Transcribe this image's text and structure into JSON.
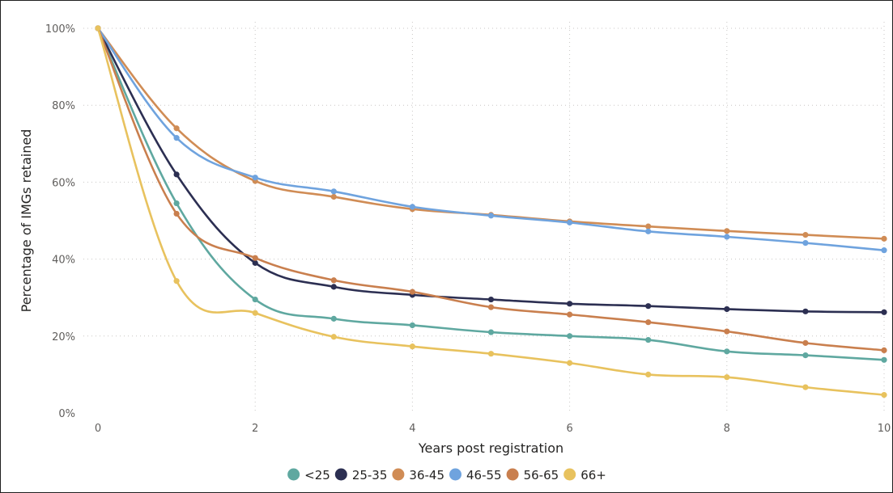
{
  "chart_data": {
    "type": "line",
    "title": "",
    "xlabel": "Years post registration",
    "ylabel": "Percentage of IMGs retained",
    "x": [
      0,
      1,
      2,
      3,
      4,
      5,
      6,
      7,
      8,
      9,
      10
    ],
    "xlim": [
      0,
      10
    ],
    "ylim": [
      0,
      100
    ],
    "x_ticks": [
      0,
      2,
      4,
      6,
      8,
      10
    ],
    "x_tick_labels": [
      "0",
      "2",
      "4",
      "6",
      "8",
      "10"
    ],
    "y_ticks": [
      0,
      20,
      40,
      60,
      80,
      100
    ],
    "y_tick_labels": [
      "0%",
      "20%",
      "40%",
      "60%",
      "80%",
      "100%"
    ],
    "grid": true,
    "legend_position": "bottom",
    "series": [
      {
        "name": "<25",
        "color": "#5fa8a0",
        "values": [
          100,
          54.5,
          29.5,
          24.5,
          22.8,
          21.0,
          20.0,
          19.0,
          16.0,
          15.0,
          13.8
        ]
      },
      {
        "name": "25-35",
        "color": "#2c2f52",
        "values": [
          100,
          62.0,
          39.0,
          32.8,
          30.7,
          29.5,
          28.4,
          27.8,
          27.0,
          26.4,
          26.2
        ]
      },
      {
        "name": "36-45",
        "color": "#d08c55",
        "values": [
          100,
          74.0,
          60.3,
          56.2,
          53.0,
          51.5,
          49.8,
          48.5,
          47.3,
          46.3,
          45.3
        ]
      },
      {
        "name": "46-55",
        "color": "#6fa3de",
        "values": [
          100,
          71.5,
          61.2,
          57.6,
          53.6,
          51.3,
          49.5,
          47.2,
          45.8,
          44.2,
          42.3
        ]
      },
      {
        "name": "56-65",
        "color": "#c97f4e",
        "values": [
          100,
          51.8,
          40.3,
          34.5,
          31.5,
          27.5,
          25.6,
          23.6,
          21.2,
          18.2,
          16.3
        ]
      },
      {
        "name": "66+",
        "color": "#e8c25e",
        "values": [
          100,
          34.3,
          26.0,
          19.8,
          17.3,
          15.4,
          13.0,
          10.0,
          9.3,
          6.7,
          4.7
        ]
      }
    ]
  }
}
